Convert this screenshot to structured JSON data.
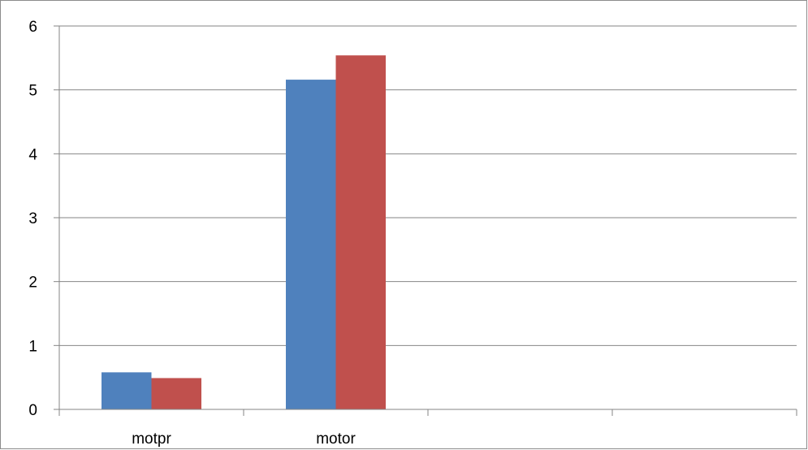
{
  "chart_data": {
    "type": "bar",
    "title": "",
    "xlabel": "",
    "ylabel": "",
    "categories": [
      "motpr",
      "motor",
      "",
      ""
    ],
    "series": [
      {
        "color": "#4f81bd",
        "values": [
          0.58,
          5.16,
          null,
          null
        ]
      },
      {
        "color": "#c0504d",
        "values": [
          0.49,
          5.54,
          null,
          null
        ]
      }
    ],
    "ylim": [
      0,
      6
    ],
    "yticks": [
      0,
      1,
      2,
      3,
      4,
      5,
      6
    ],
    "ytick_labels": [
      "0",
      "1",
      "2",
      "3",
      "4",
      "5",
      "6"
    ],
    "grid": "horizontal",
    "legend": "none"
  }
}
